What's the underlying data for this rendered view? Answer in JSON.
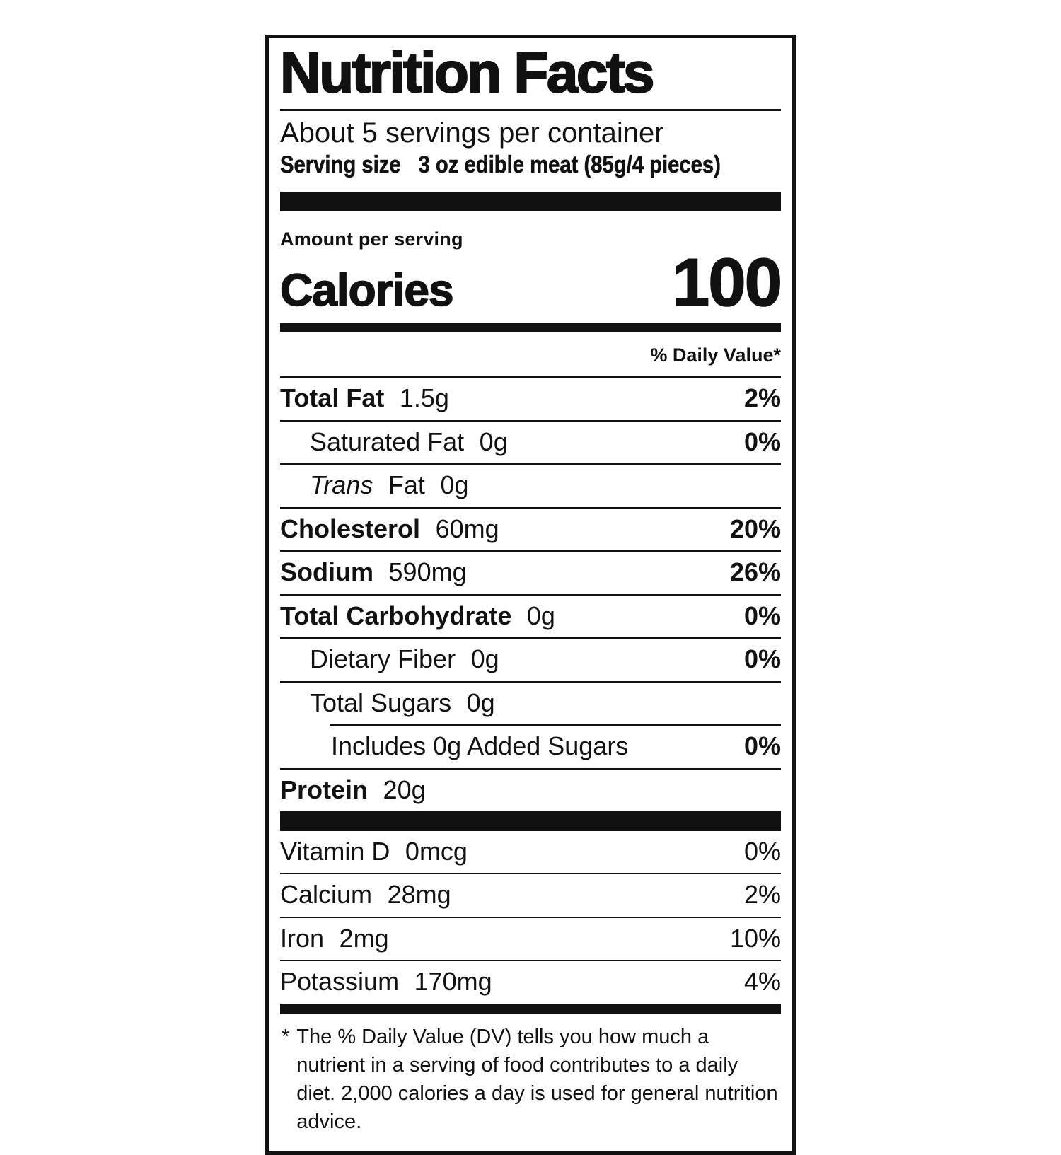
{
  "label": {
    "title": "Nutrition Facts",
    "servings_per_container": "About 5 servings per container",
    "serving_size": {
      "label": "Serving size",
      "value": "3 oz edible meat (85g/4 pieces)"
    },
    "amount_per_serving": "Amount per serving",
    "calories": {
      "label": "Calories",
      "value": "100"
    },
    "daily_value_header": "% Daily Value*",
    "nutrient_rows": [
      {
        "name": "Total Fat",
        "amount": "1.5g",
        "dv": "2%"
      },
      {
        "name": "Saturated Fat",
        "amount": "0g",
        "dv": "0%"
      },
      {
        "name_italic": "Trans",
        "name": "Fat",
        "amount": "0g",
        "dv": ""
      },
      {
        "name": "Cholesterol",
        "amount": "60mg",
        "dv": "20%"
      },
      {
        "name": "Sodium",
        "amount": "590mg",
        "dv": "26%"
      },
      {
        "name": "Total Carbohydrate",
        "amount": "0g",
        "dv": "0%"
      },
      {
        "name": "Dietary Fiber",
        "amount": "0g",
        "dv": "0%"
      },
      {
        "name": "Total Sugars",
        "amount": "0g",
        "dv": ""
      },
      {
        "name": "Includes 0g Added Sugars",
        "amount": "",
        "dv": "0%"
      },
      {
        "name": "Protein",
        "amount": "20g",
        "dv": ""
      }
    ],
    "vitamin_rows": [
      {
        "name": "Vitamin D",
        "amount": "0mcg",
        "dv": "0%"
      },
      {
        "name": "Calcium",
        "amount": "28mg",
        "dv": "2%"
      },
      {
        "name": "Iron",
        "amount": "2mg",
        "dv": "10%"
      },
      {
        "name": "Potassium",
        "amount": "170mg",
        "dv": "4%"
      }
    ],
    "footnote_marker": "*",
    "footnote": "The % Daily Value (DV) tells you how much a nutrient in a serving of food contributes to a daily diet. 2,000 calories a day is used for general nutrition advice.",
    "colors": {
      "ink": "#111111",
      "background": "#ffffff"
    }
  }
}
